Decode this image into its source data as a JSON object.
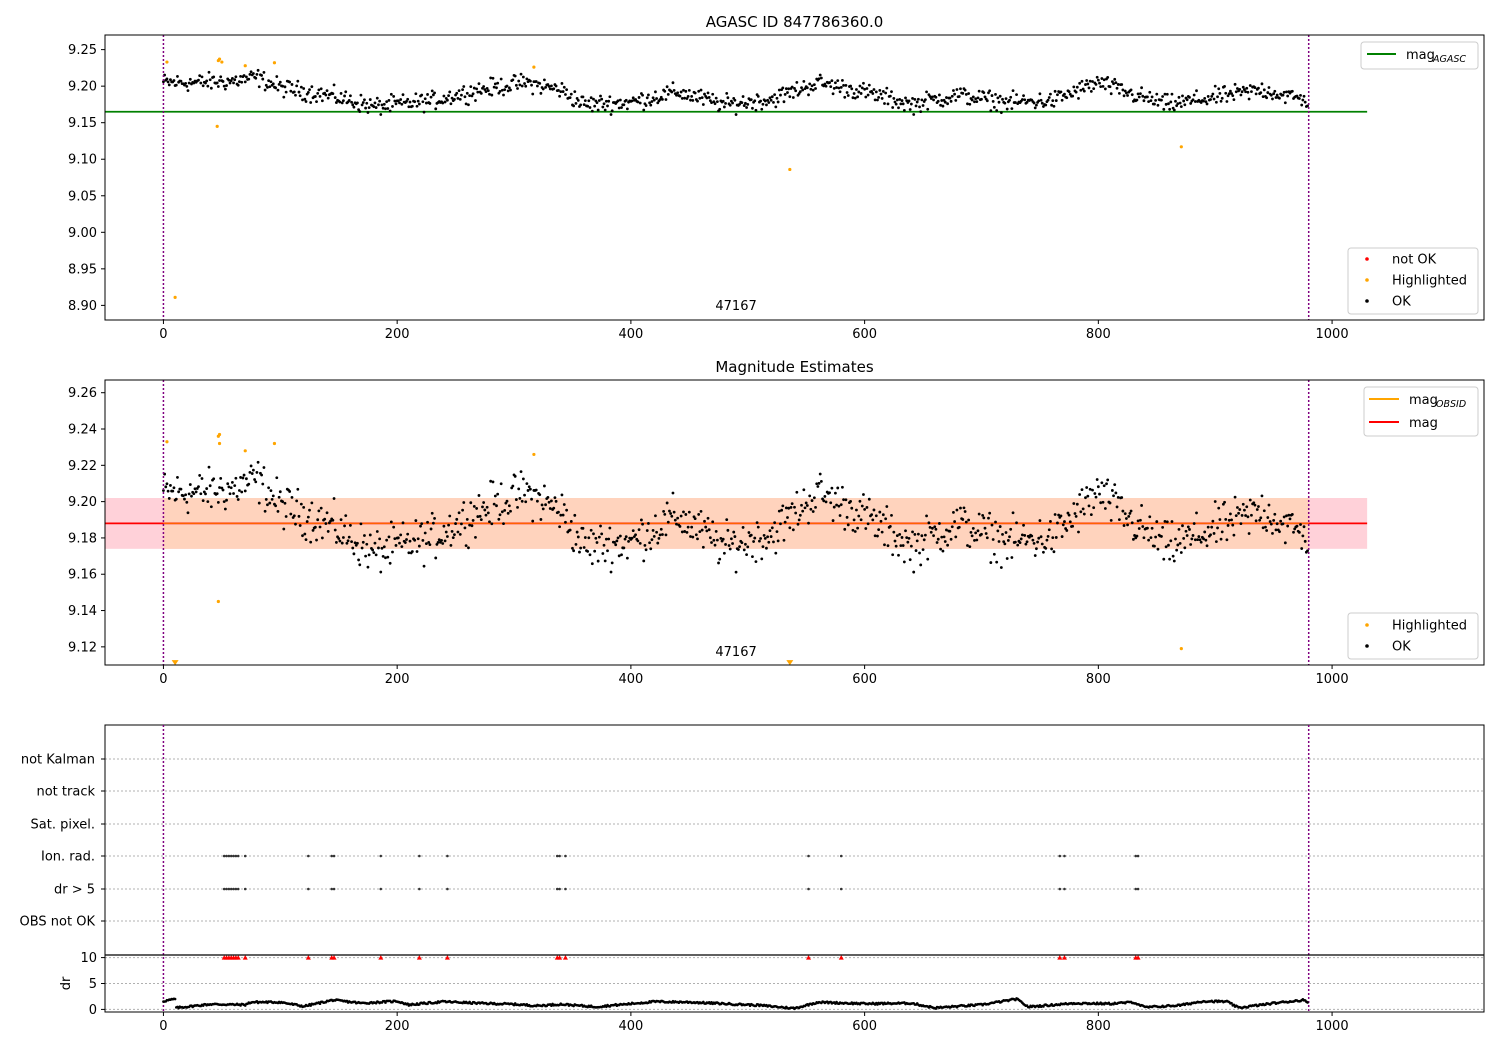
{
  "colors": {
    "ok": "#000000",
    "highlighted": "#ffa500",
    "not_ok": "#ff0000",
    "mag_agasc_line": "#008000",
    "mag_line": "#ff0000",
    "mag_obsid_line": "#ffa500",
    "band_outer": "#ffd1d9",
    "band_inner": "#ffd3bd",
    "obs_marker": "#800080"
  },
  "chart_data": [
    {
      "type": "scatter",
      "title": "AGASC ID 847786360.0",
      "xlim": [
        -50,
        1130
      ],
      "ylim": [
        8.88,
        9.27
      ],
      "xticks": [
        0,
        200,
        400,
        600,
        800,
        1000
      ],
      "yticks": [
        8.9,
        8.95,
        9.0,
        9.05,
        9.1,
        9.15,
        9.2,
        9.25
      ],
      "obs_boundaries": [
        0,
        980
      ],
      "obsid_label": "47167",
      "mag_agasc": 9.165,
      "mag_agasc_x_range": [
        -50,
        1030
      ],
      "ok_trend": [
        [
          0,
          9.205
        ],
        [
          30,
          9.205
        ],
        [
          60,
          9.207
        ],
        [
          80,
          9.212
        ],
        [
          100,
          9.198
        ],
        [
          140,
          9.188
        ],
        [
          180,
          9.172
        ],
        [
          230,
          9.18
        ],
        [
          270,
          9.195
        ],
        [
          310,
          9.205
        ],
        [
          340,
          9.195
        ],
        [
          360,
          9.175
        ],
        [
          400,
          9.178
        ],
        [
          440,
          9.192
        ],
        [
          480,
          9.175
        ],
        [
          520,
          9.182
        ],
        [
          560,
          9.205
        ],
        [
          600,
          9.192
        ],
        [
          640,
          9.175
        ],
        [
          680,
          9.188
        ],
        [
          720,
          9.178
        ],
        [
          760,
          9.18
        ],
        [
          800,
          9.205
        ],
        [
          830,
          9.188
        ],
        [
          860,
          9.175
        ],
        [
          900,
          9.185
        ],
        [
          940,
          9.195
        ],
        [
          980,
          9.18
        ]
      ],
      "ok_n_points": 980,
      "ok_scatter": 0.012,
      "highlighted": [
        [
          3,
          9.233
        ],
        [
          10,
          8.911
        ],
        [
          46,
          9.145
        ],
        [
          47,
          9.235
        ],
        [
          48,
          9.237
        ],
        [
          50,
          9.233
        ],
        [
          70,
          9.228
        ],
        [
          95,
          9.232
        ],
        [
          317,
          9.226
        ],
        [
          536,
          9.086
        ],
        [
          871,
          9.117
        ]
      ],
      "not_ok": [],
      "legend_lines": [
        {
          "label": "mag",
          "sub": "AGASC",
          "color": "#008000"
        }
      ],
      "legend_points": [
        "not OK",
        "Highlighted",
        "OK"
      ]
    },
    {
      "type": "scatter",
      "title": "Magnitude Estimates",
      "xlim": [
        -50,
        1130
      ],
      "ylim": [
        9.11,
        9.267
      ],
      "xticks": [
        0,
        200,
        400,
        600,
        800,
        1000
      ],
      "yticks": [
        9.12,
        9.14,
        9.16,
        9.18,
        9.2,
        9.22,
        9.24,
        9.26
      ],
      "obs_boundaries": [
        0,
        980
      ],
      "obsid_label": "47167",
      "mag": 9.188,
      "mag_band_inner": [
        9.174,
        9.202
      ],
      "mag_band_outer": [
        9.174,
        9.202
      ],
      "band_x_range": [
        -50,
        1030
      ],
      "highlighted": [
        [
          3,
          9.233
        ],
        [
          47,
          9.145
        ],
        [
          47,
          9.236
        ],
        [
          48,
          9.237
        ],
        [
          48,
          9.232
        ],
        [
          70,
          9.228
        ],
        [
          95,
          9.232
        ],
        [
          317,
          9.226
        ],
        [
          871,
          9.119
        ]
      ],
      "off_scale_markers": [
        [
          10,
          9.111
        ],
        [
          536,
          9.111
        ]
      ],
      "legend_lines": [
        {
          "label": "mag",
          "sub": "OBSID",
          "color": "#ffa500"
        },
        {
          "label": "mag",
          "sub": "",
          "color": "#ff0000"
        }
      ],
      "legend_points": [
        "Highlighted",
        "OK"
      ]
    },
    {
      "type": "scatter",
      "xlim": [
        -50,
        1130
      ],
      "xticks": [
        0,
        200,
        400,
        600,
        800,
        1000
      ],
      "flag_labels": [
        "not Kalman",
        "not track",
        "Sat. pixel.",
        "Ion. rad.",
        "dr > 5",
        "OBS not OK"
      ],
      "ion_rad_x": [
        52,
        54,
        56,
        58,
        60,
        62,
        64,
        70,
        124,
        144,
        146,
        186,
        219,
        243,
        337,
        339,
        344,
        552,
        580,
        767,
        771,
        832,
        834
      ],
      "dr_gt5_x": [
        52,
        54,
        56,
        58,
        60,
        62,
        64,
        70,
        124,
        144,
        146,
        186,
        219,
        243,
        337,
        339,
        344,
        552,
        580,
        767,
        771,
        832,
        834
      ],
      "dr_ylabel": "dr",
      "dr_yticks": [
        0,
        5,
        10
      ],
      "dr_ylim": [
        -0.5,
        10.5
      ],
      "dr_clipped_x": [
        52,
        54,
        56,
        58,
        60,
        62,
        64,
        70,
        124,
        144,
        146,
        186,
        219,
        243,
        337,
        339,
        344,
        552,
        580,
        767,
        771,
        832,
        834
      ],
      "dr_trend": [
        [
          0,
          1.6
        ],
        [
          10,
          2.0
        ],
        [
          11,
          0.3
        ],
        [
          40,
          1.0
        ],
        [
          70,
          0.9
        ],
        [
          75,
          1.4
        ],
        [
          100,
          1.4
        ],
        [
          120,
          0.6
        ],
        [
          145,
          1.8
        ],
        [
          170,
          1.2
        ],
        [
          200,
          1.6
        ],
        [
          210,
          0.9
        ],
        [
          240,
          1.5
        ],
        [
          270,
          1.2
        ],
        [
          300,
          1.0
        ],
        [
          320,
          0.7
        ],
        [
          340,
          1.0
        ],
        [
          370,
          0.5
        ],
        [
          400,
          1.1
        ],
        [
          420,
          1.5
        ],
        [
          450,
          1.4
        ],
        [
          480,
          1.1
        ],
        [
          510,
          0.8
        ],
        [
          540,
          0.2
        ],
        [
          560,
          1.4
        ],
        [
          600,
          1.1
        ],
        [
          640,
          1.2
        ],
        [
          660,
          0.3
        ],
        [
          700,
          0.9
        ],
        [
          730,
          2.0
        ],
        [
          740,
          0.5
        ],
        [
          780,
          1.2
        ],
        [
          810,
          1.1
        ],
        [
          830,
          1.4
        ],
        [
          840,
          0.4
        ],
        [
          870,
          0.8
        ],
        [
          890,
          1.6
        ],
        [
          910,
          1.5
        ],
        [
          920,
          0.3
        ],
        [
          950,
          1.2
        ],
        [
          975,
          1.8
        ],
        [
          980,
          1.3
        ]
      ],
      "dr_n_points": 980
    }
  ]
}
